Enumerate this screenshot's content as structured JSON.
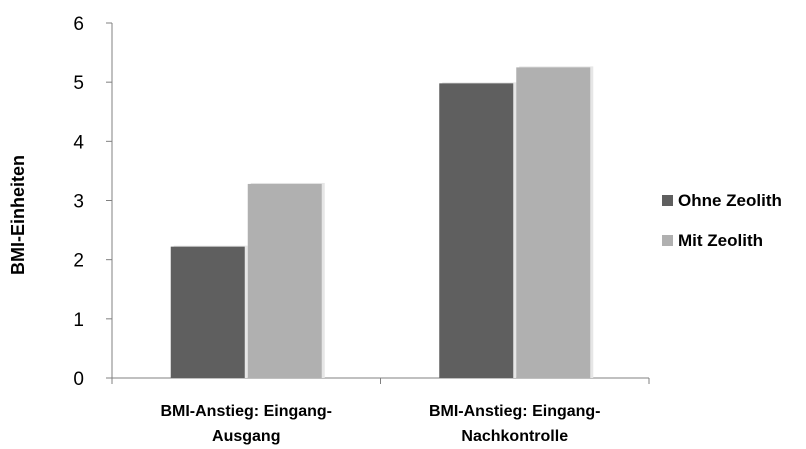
{
  "chart_data": {
    "type": "bar",
    "categories": [
      "BMI-Anstieg: Eingang-Ausgang",
      "BMI-Anstieg: Eingang-Nachkontrolle"
    ],
    "category_lines": [
      [
        "BMI-Anstieg: Eingang-",
        "Ausgang"
      ],
      [
        "BMI-Anstieg: Eingang-",
        "Nachkontrolle"
      ]
    ],
    "series": [
      {
        "name": "Ohne Zeolith",
        "values": [
          2.22,
          4.98
        ],
        "color": "#5f5f5f"
      },
      {
        "name": "Mit Zeolith",
        "values": [
          3.28,
          5.25
        ],
        "color": "#b0b0b0"
      }
    ],
    "title": "",
    "xlabel": "",
    "ylabel": "BMI-Einheiten",
    "ylim": [
      0,
      6
    ],
    "yticks": [
      "0",
      "1",
      "2",
      "3",
      "4",
      "5",
      "6"
    ],
    "grid": false,
    "legend_position": "right"
  }
}
